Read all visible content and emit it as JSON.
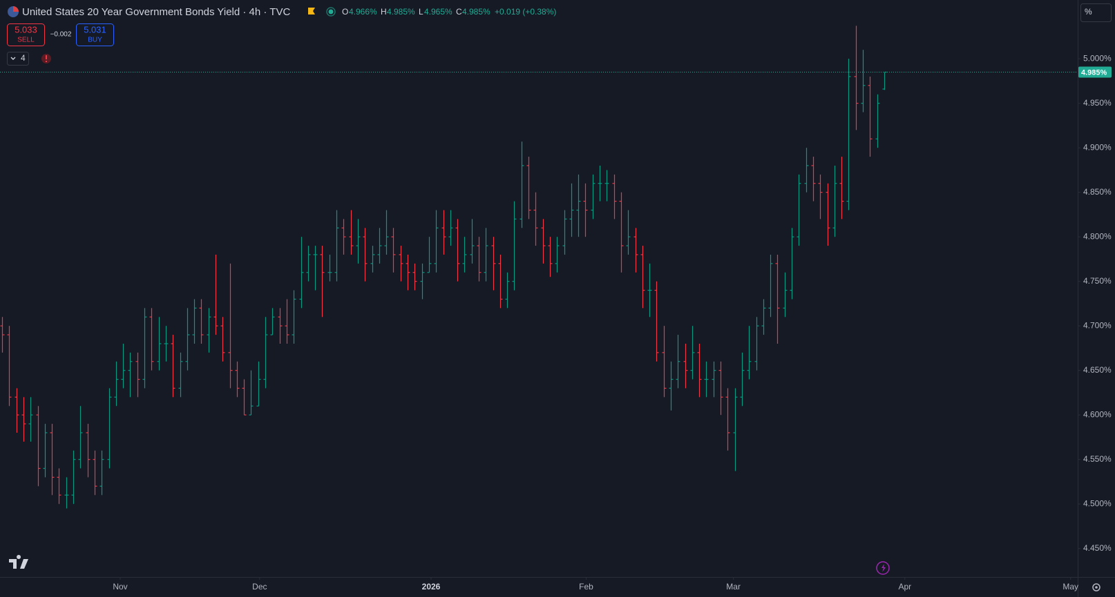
{
  "header": {
    "title": "United States 20 Year Government Bonds Yield · 4h · TVC",
    "open_label": "O",
    "open": "4.966%",
    "high_label": "H",
    "high": "4.985%",
    "low_label": "L",
    "low": "4.965%",
    "close_label": "C",
    "close": "4.985%",
    "change": "+0.019 (+0.38%)",
    "sell_price": "5.033",
    "sell_label": "SELL",
    "spread": "−0.002",
    "buy_price": "5.031",
    "buy_label": "BUY",
    "indicator_count": "4",
    "unit_button": "%"
  },
  "chart_data": {
    "type": "ohlc",
    "up_color": "#089981",
    "down_color": "#f23645",
    "x": [
      0,
      1,
      2,
      3,
      4,
      5,
      6,
      7,
      8,
      9,
      10,
      11,
      12,
      13,
      14,
      15,
      16,
      17,
      18,
      19,
      20,
      21,
      22,
      23,
      24,
      25,
      26,
      27,
      28,
      29,
      30,
      31,
      32,
      33,
      34,
      35,
      36,
      37,
      38,
      39,
      40,
      41,
      42,
      43,
      44,
      45,
      46,
      47,
      48,
      49,
      50,
      51,
      52,
      53,
      54,
      55,
      56,
      57,
      58,
      59,
      60,
      61,
      62,
      63,
      64,
      65,
      66,
      67,
      68,
      69,
      70,
      71,
      72,
      73,
      74,
      75,
      76,
      77,
      78,
      79,
      80,
      81,
      82,
      83,
      84,
      85,
      86,
      87,
      88,
      89,
      90,
      91,
      92,
      93,
      94,
      95,
      96,
      97,
      98,
      99,
      100,
      101,
      102,
      103,
      104,
      105,
      106,
      107,
      108,
      109,
      110,
      111,
      112,
      113,
      114,
      115,
      116,
      117,
      118,
      119,
      120,
      121,
      122,
      123,
      124
    ],
    "open": [
      4.7,
      4.69,
      4.62,
      4.6,
      4.59,
      4.6,
      4.54,
      4.58,
      4.53,
      4.51,
      4.51,
      4.55,
      4.58,
      4.55,
      4.52,
      4.55,
      4.62,
      4.64,
      4.65,
      4.66,
      4.64,
      4.71,
      4.66,
      4.68,
      4.68,
      4.63,
      4.66,
      4.69,
      4.72,
      4.69,
      4.71,
      4.7,
      4.67,
      4.65,
      4.63,
      4.6,
      4.61,
      4.64,
      4.69,
      4.71,
      4.7,
      4.69,
      4.73,
      4.76,
      4.78,
      4.78,
      4.76,
      4.76,
      4.81,
      4.8,
      4.79,
      4.8,
      4.77,
      4.78,
      4.79,
      4.8,
      4.78,
      4.77,
      4.76,
      4.75,
      4.76,
      4.77,
      4.81,
      4.8,
      4.81,
      4.77,
      4.78,
      4.79,
      4.76,
      4.79,
      4.77,
      4.73,
      4.75,
      4.82,
      4.88,
      4.83,
      4.81,
      4.79,
      4.77,
      4.79,
      4.82,
      4.83,
      4.84,
      4.83,
      4.86,
      4.86,
      4.86,
      4.84,
      4.79,
      4.8,
      4.78,
      4.74,
      4.74,
      4.67,
      4.63,
      4.64,
      4.66,
      4.65,
      4.67,
      4.64,
      4.64,
      4.65,
      4.62,
      4.58,
      4.62,
      4.65,
      4.66,
      4.7,
      4.72,
      4.77,
      4.72,
      4.74,
      4.8,
      4.86,
      4.88,
      4.86,
      4.85,
      4.81,
      4.86,
      4.84,
      4.98,
      4.95,
      4.97,
      4.91,
      4.966
    ],
    "high": [
      4.71,
      4.7,
      4.63,
      4.62,
      4.62,
      4.61,
      4.59,
      4.59,
      4.54,
      4.53,
      4.56,
      4.61,
      4.59,
      4.56,
      4.56,
      4.63,
      4.66,
      4.68,
      4.67,
      4.67,
      4.72,
      4.72,
      4.71,
      4.7,
      4.69,
      4.67,
      4.72,
      4.73,
      4.73,
      4.72,
      4.78,
      4.71,
      4.77,
      4.66,
      4.64,
      4.65,
      4.66,
      4.71,
      4.72,
      4.72,
      4.73,
      4.74,
      4.8,
      4.79,
      4.79,
      4.79,
      4.78,
      4.83,
      4.82,
      4.83,
      4.82,
      4.81,
      4.79,
      4.81,
      4.83,
      4.81,
      4.79,
      4.78,
      4.77,
      4.77,
      4.8,
      4.83,
      4.83,
      4.83,
      4.82,
      4.8,
      4.82,
      4.8,
      4.81,
      4.8,
      4.78,
      4.76,
      4.84,
      4.907,
      4.89,
      4.85,
      4.82,
      4.8,
      4.8,
      4.83,
      4.86,
      4.87,
      4.86,
      4.87,
      4.88,
      4.875,
      4.87,
      4.85,
      4.83,
      4.81,
      4.79,
      4.77,
      4.75,
      4.7,
      4.66,
      4.69,
      4.68,
      4.7,
      4.68,
      4.66,
      4.66,
      4.66,
      4.63,
      4.63,
      4.67,
      4.7,
      4.71,
      4.73,
      4.78,
      4.78,
      4.76,
      4.81,
      4.87,
      4.9,
      4.89,
      4.87,
      4.86,
      4.88,
      4.89,
      5.0,
      5.037,
      5.01,
      4.98,
      4.96,
      4.985
    ],
    "low": [
      4.67,
      4.61,
      4.58,
      4.57,
      4.57,
      4.52,
      4.53,
      4.51,
      4.5,
      4.495,
      4.5,
      4.54,
      4.53,
      4.51,
      4.51,
      4.54,
      4.61,
      4.63,
      4.62,
      4.62,
      4.63,
      4.65,
      4.65,
      4.66,
      4.62,
      4.62,
      4.65,
      4.68,
      4.68,
      4.67,
      4.69,
      4.66,
      4.63,
      4.62,
      4.6,
      4.6,
      4.61,
      4.63,
      4.69,
      4.68,
      4.68,
      4.68,
      4.72,
      4.75,
      4.74,
      4.71,
      4.75,
      4.75,
      4.78,
      4.78,
      4.77,
      4.75,
      4.76,
      4.77,
      4.78,
      4.76,
      4.75,
      4.74,
      4.74,
      4.73,
      4.76,
      4.76,
      4.78,
      4.79,
      4.75,
      4.76,
      4.77,
      4.75,
      4.75,
      4.74,
      4.72,
      4.72,
      4.74,
      4.81,
      4.82,
      4.79,
      4.77,
      4.755,
      4.76,
      4.78,
      4.8,
      4.8,
      4.8,
      4.82,
      4.84,
      4.84,
      4.82,
      4.76,
      4.78,
      4.76,
      4.72,
      4.71,
      4.66,
      4.62,
      4.605,
      4.63,
      4.63,
      4.64,
      4.62,
      4.62,
      4.62,
      4.6,
      4.56,
      4.537,
      4.61,
      4.64,
      4.65,
      4.69,
      4.71,
      4.68,
      4.71,
      4.73,
      4.79,
      4.85,
      4.84,
      4.82,
      4.79,
      4.8,
      4.82,
      4.83,
      4.92,
      4.94,
      4.89,
      4.9,
      4.965
    ],
    "close": [
      4.69,
      4.62,
      4.6,
      4.59,
      4.6,
      4.54,
      4.58,
      4.53,
      4.51,
      4.51,
      4.55,
      4.58,
      4.55,
      4.52,
      4.55,
      4.62,
      4.64,
      4.65,
      4.66,
      4.64,
      4.71,
      4.66,
      4.68,
      4.68,
      4.63,
      4.66,
      4.69,
      4.72,
      4.69,
      4.71,
      4.7,
      4.67,
      4.65,
      4.63,
      4.6,
      4.61,
      4.64,
      4.69,
      4.71,
      4.7,
      4.69,
      4.73,
      4.76,
      4.78,
      4.78,
      4.76,
      4.76,
      4.81,
      4.8,
      4.79,
      4.8,
      4.77,
      4.78,
      4.79,
      4.8,
      4.78,
      4.77,
      4.76,
      4.75,
      4.76,
      4.77,
      4.81,
      4.8,
      4.81,
      4.77,
      4.78,
      4.79,
      4.76,
      4.79,
      4.77,
      4.73,
      4.75,
      4.82,
      4.88,
      4.83,
      4.81,
      4.79,
      4.77,
      4.79,
      4.82,
      4.83,
      4.84,
      4.83,
      4.86,
      4.86,
      4.86,
      4.84,
      4.79,
      4.8,
      4.78,
      4.74,
      4.74,
      4.67,
      4.63,
      4.64,
      4.66,
      4.65,
      4.67,
      4.64,
      4.64,
      4.65,
      4.62,
      4.58,
      4.62,
      4.65,
      4.66,
      4.7,
      4.72,
      4.77,
      4.72,
      4.74,
      4.8,
      4.86,
      4.88,
      4.86,
      4.85,
      4.81,
      4.86,
      4.84,
      4.98,
      4.95,
      4.97,
      4.91,
      4.95,
      4.985
    ],
    "xlim": [
      -0.3,
      151.2
    ],
    "xticks": [
      {
        "value": 16.6,
        "label": "Nov"
      },
      {
        "value": 36.2,
        "label": "Dec"
      },
      {
        "value": 60.3,
        "label": "2026"
      },
      {
        "value": 82.1,
        "label": "Feb"
      },
      {
        "value": 102.8,
        "label": "Mar"
      },
      {
        "value": 126.9,
        "label": "Apr"
      },
      {
        "value": 150.2,
        "label": "May"
      }
    ],
    "ylim": [
      4.418,
      5.066
    ],
    "yticks": [
      {
        "value": 4.45,
        "label": "4.450%"
      },
      {
        "value": 4.5,
        "label": "4.500%"
      },
      {
        "value": 4.55,
        "label": "4.550%"
      },
      {
        "value": 4.6,
        "label": "4.600%"
      },
      {
        "value": 4.65,
        "label": "4.650%"
      },
      {
        "value": 4.7,
        "label": "4.700%"
      },
      {
        "value": 4.75,
        "label": "4.750%"
      },
      {
        "value": 4.8,
        "label": "4.800%"
      },
      {
        "value": 4.85,
        "label": "4.850%"
      },
      {
        "value": 4.9,
        "label": "4.900%"
      },
      {
        "value": 4.95,
        "label": "4.950%"
      },
      {
        "value": 5.0,
        "label": "5.000%"
      }
    ],
    "last_price": {
      "value": 4.985,
      "label": "4.985%"
    },
    "last_price_color": "#22ab94",
    "grid": false
  }
}
